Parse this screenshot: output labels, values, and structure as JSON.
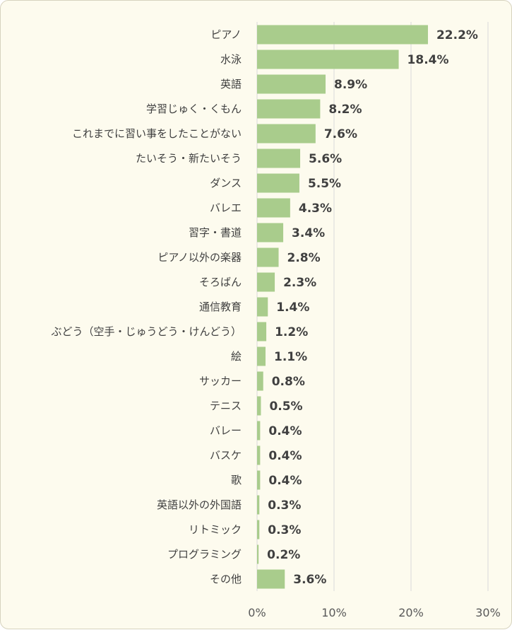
{
  "chart_data": {
    "type": "bar",
    "orientation": "horizontal",
    "categories": [
      "ピアノ",
      "水泳",
      "英語",
      "学習じゅく・くもん",
      "これまでに習い事をしたことがない",
      "たいそう・新たいそう",
      "ダンス",
      "バレエ",
      "習字・書道",
      "ピアノ以外の楽器",
      "そろばん",
      "通信教育",
      "ぶどう（空手・じゅうどう・けんどう）",
      "絵",
      "サッカー",
      "テニス",
      "バレー",
      "バスケ",
      "歌",
      "英語以外の外国語",
      "リトミック",
      "プログラミング",
      "その他"
    ],
    "values": [
      22.2,
      18.4,
      8.9,
      8.2,
      7.6,
      5.6,
      5.5,
      4.3,
      3.4,
      2.8,
      2.3,
      1.4,
      1.2,
      1.1,
      0.8,
      0.5,
      0.4,
      0.4,
      0.4,
      0.3,
      0.3,
      0.2,
      3.6
    ],
    "value_labels": [
      "22.2%",
      "18.4%",
      "8.9%",
      "8.2%",
      "7.6%",
      "5.6%",
      "5.5%",
      "4.3%",
      "3.4%",
      "2.8%",
      "2.3%",
      "1.4%",
      "1.2%",
      "1.1%",
      "0.8%",
      "0.5%",
      "0.4%",
      "0.4%",
      "0.4%",
      "0.3%",
      "0.3%",
      "0.2%",
      "3.6%"
    ],
    "xlim": [
      0,
      30
    ],
    "xticks": [
      0,
      10,
      20,
      30
    ],
    "xtick_labels": [
      "0%",
      "10%",
      "20%",
      "30%"
    ],
    "grid": true,
    "colors": {
      "bar": "#a9cc8c",
      "background": "#fdfbee",
      "grid": "#d9d9d9",
      "text": "#404040"
    }
  }
}
